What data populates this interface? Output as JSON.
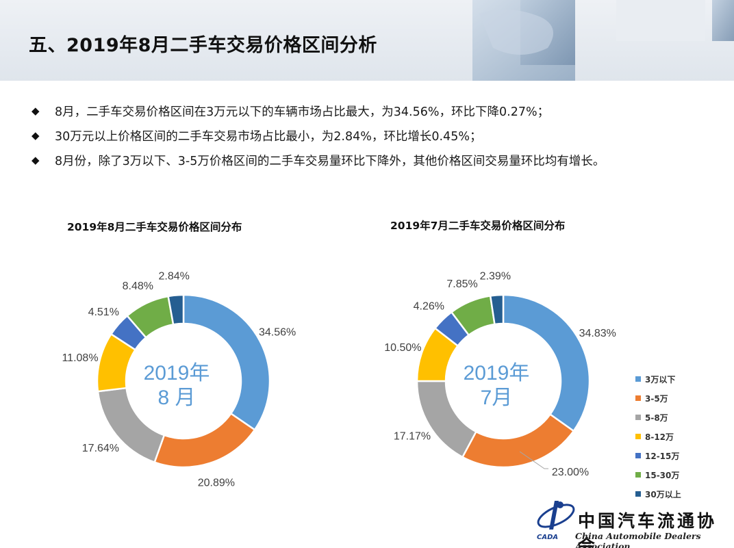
{
  "header": {
    "title": "五、2019年8月二手车交易价格区间分析"
  },
  "bullets": [
    "8月，二手车交易价格区间在3万元以下的车辆市场占比最大，为34.56%，环比下降0.27%；",
    "30万元以上价格区间的二手车交易市场占比最小，为2.84%，环比增长0.45%；",
    "8月份，除了3万以下、3-5万价格区间的二手车交易量环比下降外，其他价格区间交易量环比均有增长。"
  ],
  "bullet_mark": "◆",
  "colors": [
    "#5b9bd5",
    "#ed7d31",
    "#a5a5a5",
    "#ffc000",
    "#4472c4",
    "#70ad47",
    "#255e91"
  ],
  "chart_data": [
    {
      "type": "pie",
      "title": "2019年8月二手车交易价格区间分布",
      "center_label": [
        "2019年",
        "8 月"
      ],
      "categories": [
        "3万以下",
        "3-5万",
        "5-8万",
        "8-12万",
        "12-15万",
        "15-30万",
        "30万以上"
      ],
      "values": [
        34.56,
        20.89,
        17.64,
        11.08,
        4.51,
        8.48,
        2.84
      ],
      "labels": [
        "34.56%",
        "20.89%",
        "17.64%",
        "11.08%",
        "4.51%",
        "8.48%",
        "2.84%"
      ]
    },
    {
      "type": "pie",
      "title": "2019年7月二手车交易价格区间分布",
      "center_label": [
        "2019年",
        "7月"
      ],
      "categories": [
        "3万以下",
        "3-5万",
        "5-8万",
        "8-12万",
        "12-15万",
        "15-30万",
        "30万以上"
      ],
      "values": [
        34.83,
        23.0,
        17.17,
        10.5,
        4.26,
        7.85,
        2.39
      ],
      "labels": [
        "34.83%",
        "23.00%",
        "17.17%",
        "10.50%",
        "4.26%",
        "7.85%",
        "2.39%"
      ]
    }
  ],
  "legend": [
    "3万以下",
    "3-5万",
    "5-8万",
    "8-12万",
    "12-15万",
    "15-30万",
    "30万以上"
  ],
  "logo": {
    "cn": "中国汽车流通协会",
    "en": "China Automobile Dealers Association",
    "abbr": "CADA"
  }
}
